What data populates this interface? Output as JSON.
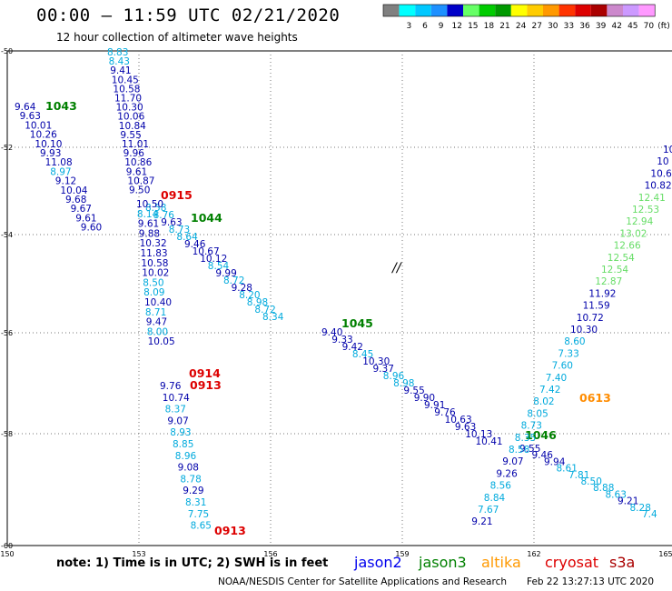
{
  "header": {
    "title": "00:00 – 11:59 UTC 02/21/2020",
    "subtitle": "12 hour collection of altimeter wave heights"
  },
  "colorbar": {
    "unit": "(ft)",
    "swatches": [
      {
        "color": "#808080",
        "label": ""
      },
      {
        "color": "#00ffff",
        "label": "3"
      },
      {
        "color": "#00c8ff",
        "label": "6"
      },
      {
        "color": "#1e90ff",
        "label": "9"
      },
      {
        "color": "#0000c8",
        "label": "12"
      },
      {
        "color": "#66ff66",
        "label": "15"
      },
      {
        "color": "#00cc00",
        "label": "18"
      },
      {
        "color": "#009900",
        "label": "21"
      },
      {
        "color": "#ffff00",
        "label": "24"
      },
      {
        "color": "#ffcc00",
        "label": "27"
      },
      {
        "color": "#ff9900",
        "label": "30"
      },
      {
        "color": "#ff3300",
        "label": "33"
      },
      {
        "color": "#dd0000",
        "label": "36"
      },
      {
        "color": "#aa0000",
        "label": "39"
      },
      {
        "color": "#cc88cc",
        "label": "42"
      },
      {
        "color": "#cc99ff",
        "label": "45"
      },
      {
        "color": "#ff99ff",
        "label": "70"
      }
    ]
  },
  "axes": {
    "lat_labels": [
      "-50",
      "-52",
      "-54",
      "-56",
      "-58",
      "-60"
    ],
    "lon_labels": [
      "150",
      "153",
      "156",
      "159",
      "162",
      "165"
    ]
  },
  "tracks": [
    {
      "name": "track-1043",
      "time_label": "1043",
      "time_color": "#008000",
      "readings": [
        {
          "t": "9.64",
          "c": "#0000aa"
        },
        {
          "t": "9.63",
          "c": "#0000aa"
        },
        {
          "t": "10.01",
          "c": "#0000aa"
        },
        {
          "t": "10.26",
          "c": "#0000aa"
        },
        {
          "t": "10.10",
          "c": "#0000aa"
        },
        {
          "t": "9.93",
          "c": "#0000aa"
        },
        {
          "t": "11.08",
          "c": "#0000aa"
        },
        {
          "t": "8.97",
          "c": "#00aadd"
        },
        {
          "t": "9.12",
          "c": "#0000aa"
        },
        {
          "t": "10.04",
          "c": "#0000aa"
        },
        {
          "t": "9.68",
          "c": "#0000aa"
        },
        {
          "t": "9.67",
          "c": "#0000aa"
        },
        {
          "t": "9.61",
          "c": "#0000aa"
        },
        {
          "t": "9.60",
          "c": "#0000aa"
        }
      ]
    },
    {
      "name": "track-0915",
      "time_label": "0915",
      "time_color": "#dd0000",
      "readings": [
        {
          "t": "8.83",
          "c": "#00aadd"
        },
        {
          "t": "8.43",
          "c": "#00aadd"
        },
        {
          "t": "9.41",
          "c": "#0000aa"
        },
        {
          "t": "10.45",
          "c": "#0000aa"
        },
        {
          "t": "10.58",
          "c": "#0000aa"
        },
        {
          "t": "11.70",
          "c": "#0000aa"
        },
        {
          "t": "10.30",
          "c": "#0000aa"
        },
        {
          "t": "10.06",
          "c": "#0000aa"
        },
        {
          "t": "10.84",
          "c": "#0000aa"
        },
        {
          "t": "9.55",
          "c": "#0000aa"
        },
        {
          "t": "11.01",
          "c": "#0000aa"
        },
        {
          "t": "9.96",
          "c": "#0000aa"
        },
        {
          "t": "10.86",
          "c": "#0000aa"
        },
        {
          "t": "9.61",
          "c": "#0000aa"
        },
        {
          "t": "10.87",
          "c": "#0000aa"
        },
        {
          "t": "9.50",
          "c": "#0000aa"
        }
      ]
    },
    {
      "name": "track-1044",
      "time_label": "1044",
      "time_color": "#008000",
      "readings": [
        {
          "t": "8.58",
          "c": "#00aadd"
        },
        {
          "t": "8.76",
          "c": "#00aadd"
        },
        {
          "t": "9.63",
          "c": "#0000aa"
        },
        {
          "t": "8.73",
          "c": "#00aadd"
        },
        {
          "t": "8.64",
          "c": "#00aadd"
        },
        {
          "t": "9.46",
          "c": "#0000aa"
        },
        {
          "t": "10.67",
          "c": "#0000aa"
        },
        {
          "t": "10.12",
          "c": "#0000aa"
        },
        {
          "t": "8.54",
          "c": "#00aadd"
        },
        {
          "t": "9.99",
          "c": "#0000aa"
        },
        {
          "t": "8.72",
          "c": "#00aadd"
        },
        {
          "t": "9.28",
          "c": "#0000aa"
        },
        {
          "t": "8.20",
          "c": "#00aadd"
        },
        {
          "t": "8.98",
          "c": "#00aadd"
        },
        {
          "t": "8.72",
          "c": "#00aadd"
        },
        {
          "t": "8.34",
          "c": "#00aadd"
        }
      ]
    },
    {
      "name": "track-1045",
      "time_label": "1045",
      "time_color": "#008000",
      "readings": [
        {
          "t": "9.40",
          "c": "#0000aa"
        },
        {
          "t": "9.33",
          "c": "#0000aa"
        },
        {
          "t": "9.42",
          "c": "#0000aa"
        },
        {
          "t": "8.45",
          "c": "#00aadd"
        },
        {
          "t": "10.30",
          "c": "#0000aa"
        },
        {
          "t": "9.37",
          "c": "#0000aa"
        },
        {
          "t": "8.96",
          "c": "#00aadd"
        },
        {
          "t": "8.98",
          "c": "#00aadd"
        },
        {
          "t": "9.55",
          "c": "#0000aa"
        },
        {
          "t": "9.90",
          "c": "#0000aa"
        },
        {
          "t": "9.91",
          "c": "#0000aa"
        },
        {
          "t": "9.76",
          "c": "#0000aa"
        },
        {
          "t": "10.63",
          "c": "#0000aa"
        },
        {
          "t": "9.63",
          "c": "#0000aa"
        },
        {
          "t": "10.13",
          "c": "#0000aa"
        },
        {
          "t": "10.41",
          "c": "#0000aa"
        }
      ]
    },
    {
      "name": "track-1046",
      "time_label": "1046",
      "time_color": "#008000",
      "readings": [
        {
          "t": "9.55",
          "c": "#0000aa"
        },
        {
          "t": "9.46",
          "c": "#0000aa"
        },
        {
          "t": "9.94",
          "c": "#0000aa"
        },
        {
          "t": "8.61",
          "c": "#00aadd"
        },
        {
          "t": "7.81",
          "c": "#00aadd"
        },
        {
          "t": "8.50",
          "c": "#00aadd"
        },
        {
          "t": "8.88",
          "c": "#00aadd"
        },
        {
          "t": "8.63",
          "c": "#00aadd"
        },
        {
          "t": "9.21",
          "c": "#0000aa"
        },
        {
          "t": "8.28",
          "c": "#00aadd"
        },
        {
          "t": "7.4",
          "c": "#00aadd"
        }
      ]
    },
    {
      "name": "track-0914",
      "time_label": "0914",
      "time_color": "#dd0000",
      "readings": [
        {
          "t": "10.50",
          "c": "#0000aa"
        },
        {
          "t": "8.14",
          "c": "#00aadd"
        },
        {
          "t": "9.61",
          "c": "#0000aa"
        },
        {
          "t": "9.88",
          "c": "#0000aa"
        },
        {
          "t": "10.32",
          "c": "#0000aa"
        },
        {
          "t": "11.83",
          "c": "#0000aa"
        },
        {
          "t": "10.58",
          "c": "#0000aa"
        },
        {
          "t": "10.02",
          "c": "#0000aa"
        },
        {
          "t": "8.50",
          "c": "#00aadd"
        },
        {
          "t": "8.09",
          "c": "#00aadd"
        },
        {
          "t": "10.40",
          "c": "#0000aa"
        },
        {
          "t": "8.71",
          "c": "#00aadd"
        },
        {
          "t": "9.47",
          "c": "#0000aa"
        },
        {
          "t": "8.00",
          "c": "#00aadd"
        },
        {
          "t": "10.05",
          "c": "#0000aa"
        }
      ]
    },
    {
      "name": "track-0913a",
      "time_label": "0913",
      "time_color": "#dd0000",
      "readings": [
        {
          "t": "9.76",
          "c": "#0000aa"
        },
        {
          "t": "10.74",
          "c": "#0000aa"
        },
        {
          "t": "8.37",
          "c": "#00aadd"
        },
        {
          "t": "9.07",
          "c": "#0000aa"
        },
        {
          "t": "8.93",
          "c": "#00aadd"
        },
        {
          "t": "8.85",
          "c": "#00aadd"
        },
        {
          "t": "8.96",
          "c": "#00aadd"
        },
        {
          "t": "9.08",
          "c": "#0000aa"
        },
        {
          "t": "8.78",
          "c": "#00aadd"
        },
        {
          "t": "9.29",
          "c": "#0000aa"
        },
        {
          "t": "8.31",
          "c": "#00aadd"
        },
        {
          "t": "7.75",
          "c": "#00aadd"
        },
        {
          "t": "8.65",
          "c": "#00aadd"
        }
      ]
    },
    {
      "name": "track-0913b",
      "time_label": "0913",
      "time_color": "#dd0000",
      "readings": []
    },
    {
      "name": "track-0613",
      "time_label": "0613",
      "time_color": "#ff8c00",
      "readings": [
        {
          "t": "10",
          "c": "#0000aa"
        },
        {
          "t": "10",
          "c": "#0000aa"
        },
        {
          "t": "10.6",
          "c": "#0000aa"
        },
        {
          "t": "10.82",
          "c": "#0000aa"
        },
        {
          "t": "12.41",
          "c": "#66dd66"
        },
        {
          "t": "12.53",
          "c": "#66dd66"
        },
        {
          "t": "12.94",
          "c": "#66dd66"
        },
        {
          "t": "13.02",
          "c": "#66dd66"
        },
        {
          "t": "12.66",
          "c": "#66dd66"
        },
        {
          "t": "12.54",
          "c": "#66dd66"
        },
        {
          "t": "12.54",
          "c": "#66dd66"
        },
        {
          "t": "12.87",
          "c": "#66dd66"
        },
        {
          "t": "11.92",
          "c": "#0000aa"
        },
        {
          "t": "11.59",
          "c": "#0000aa"
        },
        {
          "t": "10.72",
          "c": "#0000aa"
        },
        {
          "t": "10.30",
          "c": "#0000aa"
        },
        {
          "t": "8.60",
          "c": "#00aadd"
        },
        {
          "t": "7.33",
          "c": "#00aadd"
        },
        {
          "t": "7.60",
          "c": "#00aadd"
        },
        {
          "t": "7.40",
          "c": "#00aadd"
        },
        {
          "t": "7.42",
          "c": "#00aadd"
        },
        {
          "t": "8.02",
          "c": "#00aadd"
        },
        {
          "t": "8.05",
          "c": "#00aadd"
        },
        {
          "t": "8.73",
          "c": "#00aadd"
        },
        {
          "t": "8.35",
          "c": "#00aadd"
        },
        {
          "t": "8.58",
          "c": "#00aadd"
        },
        {
          "t": "9.07",
          "c": "#0000aa"
        },
        {
          "t": "9.26",
          "c": "#0000aa"
        },
        {
          "t": "8.56",
          "c": "#00aadd"
        },
        {
          "t": "8.84",
          "c": "#00aadd"
        },
        {
          "t": "7.67",
          "c": "#00aadd"
        },
        {
          "t": "9.21",
          "c": "#0000aa"
        }
      ]
    }
  ],
  "cursor_glyph": "//",
  "footer": {
    "note": "note: 1) Time is in UTC; 2) SWH is in feet",
    "satellites": [
      {
        "name": "jason2",
        "color": "#0000ee"
      },
      {
        "name": "jason3",
        "color": "#008000"
      },
      {
        "name": "altika",
        "color": "#ff9900"
      },
      {
        "name": "cryosat",
        "color": "#dd0000"
      },
      {
        "name": "s3a",
        "color": "#aa0000"
      }
    ],
    "credit": "NOAA/NESDIS Center for Satellite Applications and Research",
    "timestamp": "Feb 22 13:27:13 UTC 2020"
  }
}
